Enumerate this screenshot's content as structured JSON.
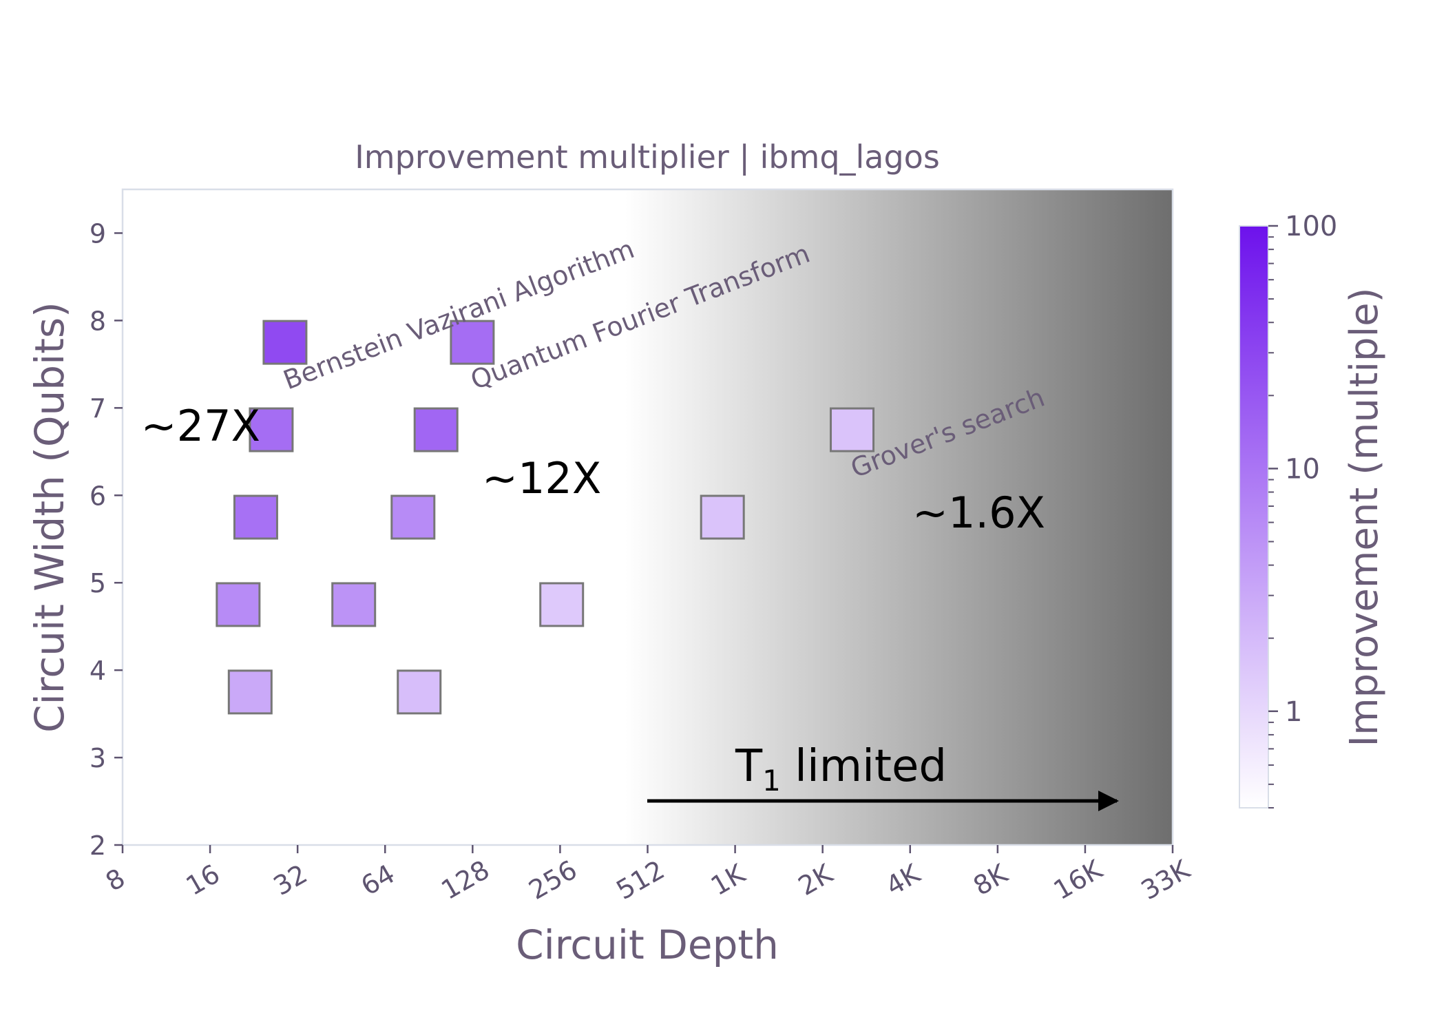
{
  "chart_data": {
    "type": "scatter",
    "title": "Improvement multiplier | ibmq_lagos",
    "xlabel": "Circuit Depth",
    "ylabel": "Circuit Width (Qubits)",
    "x_scale": "log2",
    "xlim": [
      8,
      33000
    ],
    "ylim": [
      2,
      9.5
    ],
    "x_ticks": [
      8,
      16,
      32,
      64,
      128,
      256,
      512,
      1000,
      2000,
      4000,
      8000,
      16000,
      33000
    ],
    "x_tick_labels": [
      "8",
      "16",
      "32",
      "64",
      "128",
      "256",
      "512",
      "1K",
      "2K",
      "4K",
      "8K",
      "16K",
      "33K"
    ],
    "y_ticks": [
      2,
      3,
      4,
      5,
      6,
      7,
      8,
      9
    ],
    "y_tick_labels": [
      "2",
      "3",
      "4",
      "5",
      "6",
      "7",
      "8",
      "9"
    ],
    "marker": "square",
    "points": [
      {
        "depth": 29,
        "width": 7.75,
        "improvement": 27
      },
      {
        "depth": 128,
        "width": 7.75,
        "improvement": 12
      },
      {
        "depth": 26,
        "width": 6.75,
        "improvement": 12
      },
      {
        "depth": 96,
        "width": 6.75,
        "improvement": 14
      },
      {
        "depth": 23,
        "width": 5.75,
        "improvement": 11
      },
      {
        "depth": 80,
        "width": 5.75,
        "improvement": 6
      },
      {
        "depth": 930,
        "width": 5.75,
        "improvement": 1.6
      },
      {
        "depth": 20,
        "width": 4.75,
        "improvement": 6
      },
      {
        "depth": 50,
        "width": 4.75,
        "improvement": 5
      },
      {
        "depth": 260,
        "width": 4.75,
        "improvement": 1.4
      },
      {
        "depth": 22,
        "width": 3.75,
        "improvement": 3
      },
      {
        "depth": 84,
        "width": 3.75,
        "improvement": 1.8
      },
      {
        "depth": 2600,
        "width": 6.75,
        "improvement": 1.6
      }
    ],
    "algorithm_labels": [
      "Bernstein Vazirani Algorithm",
      "Quantum Fourier Transform",
      "Grover's search"
    ],
    "callouts": [
      "~27X",
      "~12X",
      "~1.6X"
    ],
    "t1_label_main": "T",
    "t1_label_sub": "1",
    "t1_label_rest": " limited",
    "colorbar": {
      "label": "Improvement (multiple)",
      "scale": "log",
      "range": [
        0.4,
        100
      ],
      "ticks": [
        1,
        10,
        100
      ],
      "tick_labels": [
        "1",
        "10",
        "100"
      ],
      "color_low": "#ffffff",
      "color_high": "#6d12ec"
    },
    "background_gradient": {
      "start_depth": 430,
      "color_start": "#ffffff",
      "color_end": "#6e6e6e"
    }
  }
}
